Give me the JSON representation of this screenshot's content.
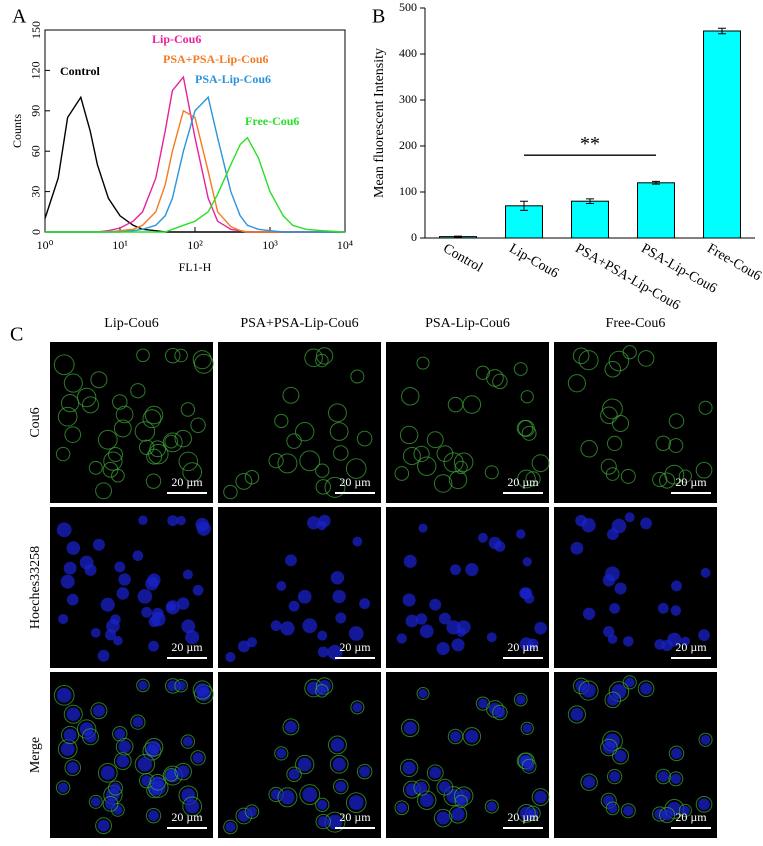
{
  "chart_data": [
    {
      "type": "line",
      "panel_label": "A",
      "xlabel": "FL1-H",
      "ylabel": "Counts",
      "xscale": "log",
      "x": [
        1,
        1.5,
        2,
        3,
        4,
        5,
        7,
        10,
        15,
        20,
        30,
        40,
        50,
        70,
        100,
        150,
        200,
        300,
        400,
        500,
        700,
        1000,
        1500,
        2000,
        3000,
        5000,
        10000
      ],
      "xlim": [
        1,
        10000
      ],
      "xticks": [
        {
          "value": 1,
          "label": "10⁰"
        },
        {
          "value": 10,
          "label": "10¹"
        },
        {
          "value": 100,
          "label": "10²"
        },
        {
          "value": 1000,
          "label": "10³"
        },
        {
          "value": 10000,
          "label": "10⁴"
        }
      ],
      "ylim": [
        0,
        150
      ],
      "yticks": [
        0,
        30,
        60,
        90,
        120,
        150
      ],
      "series": [
        {
          "name": "Control",
          "color": "#000000",
          "values": [
            10,
            40,
            85,
            100,
            75,
            50,
            25,
            12,
            5,
            2,
            1,
            0,
            0,
            0,
            0,
            0,
            0,
            0,
            0,
            0,
            0,
            0,
            0,
            0,
            0,
            0,
            0
          ]
        },
        {
          "name": "Lip-Cou6",
          "color": "#e8219c",
          "values": [
            0,
            0,
            0,
            0,
            0,
            0,
            1,
            3,
            8,
            15,
            40,
            75,
            105,
            115,
            70,
            25,
            8,
            2,
            1,
            0,
            0,
            0,
            0,
            0,
            0,
            0,
            0
          ]
        },
        {
          "name": "PSA+PSA-Lip-Cou6",
          "color": "#f47a22",
          "values": [
            0,
            0,
            0,
            0,
            0,
            0,
            0,
            1,
            2,
            5,
            15,
            35,
            60,
            90,
            85,
            45,
            15,
            4,
            1,
            0,
            0,
            0,
            0,
            0,
            0,
            0,
            0
          ]
        },
        {
          "name": "PSA-Lip-Cou6",
          "color": "#2b93dc",
          "values": [
            0,
            0,
            0,
            0,
            0,
            0,
            0,
            0,
            1,
            2,
            5,
            12,
            25,
            60,
            90,
            100,
            70,
            30,
            12,
            5,
            2,
            1,
            0,
            0,
            0,
            0,
            0
          ]
        },
        {
          "name": "Free-Cou6",
          "color": "#27e027",
          "values": [
            0,
            0,
            0,
            0,
            0,
            0,
            0,
            0,
            0,
            0,
            0,
            0,
            2,
            5,
            8,
            15,
            28,
            50,
            65,
            70,
            55,
            30,
            12,
            5,
            2,
            1,
            0
          ]
        }
      ]
    },
    {
      "type": "bar",
      "panel_label": "B",
      "ylabel": "Mean fluorescent Intensity",
      "color": "#00ffff",
      "categories": [
        "Control",
        "Lip-Cou6",
        "PSA+PSA-Lip-Cou6",
        "PSA-Lip-Cou6",
        "Free-Cou6"
      ],
      "values": [
        3,
        70,
        80,
        120,
        450
      ],
      "errors": [
        1,
        10,
        5,
        3,
        6
      ],
      "ylim": [
        0,
        500
      ],
      "yticks": [
        0,
        100,
        200,
        300,
        400,
        500
      ],
      "annotation": {
        "text": "**",
        "y": 180
      }
    }
  ],
  "image_grid": {
    "panel_label": "C",
    "columns": [
      "Lip-Cou6",
      "PSA+PSA-Lip-Cou6",
      "PSA-Lip-Cou6",
      "Free-Cou6"
    ],
    "rows": [
      "Cou6",
      "Hoeches33258",
      "Merge"
    ],
    "scale_bar": "20 µm"
  }
}
